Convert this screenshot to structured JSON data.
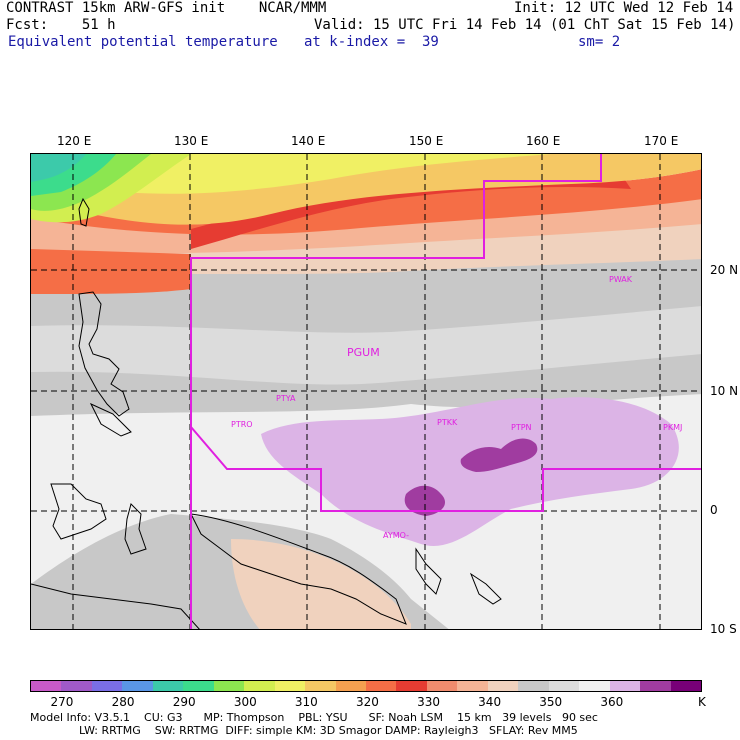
{
  "header": {
    "line1_left": "CONTRAST 15km ARW-GFS init    NCAR/MMM",
    "line1_right": "Init: 12 UTC Wed 12 Feb 14",
    "line2_left": "Fcst:    51 h",
    "line2_right": "Valid: 15 UTC Fri 14 Feb 14 (01 ChT Sat 15 Feb 14)",
    "field_name": "Equivalent potential temperature",
    "level": "at k-index =  39",
    "smooth": "sm= 2"
  },
  "map": {
    "lon_labels": [
      "120 E",
      "130 E",
      "140 E",
      "150 E",
      "160 E",
      "170 E"
    ],
    "lat_labels": [
      "20 N",
      "10 N",
      "0",
      "10 S"
    ],
    "stations": [
      "PGUM",
      "PTYA",
      "PTRO",
      "PTKK",
      "PTPN",
      "PKMJ",
      "PWAK",
      "AYMO-"
    ],
    "colors": {
      "grid": "#000000",
      "domain_box": "#e020e0",
      "coast": "#000000"
    }
  },
  "colorbar": {
    "unit": "K",
    "tick_labels": [
      "270",
      "280",
      "290",
      "300",
      "310",
      "320",
      "330",
      "340",
      "350",
      "360"
    ],
    "colors": [
      "#c85ac8",
      "#a05ac8",
      "#7a6ee6",
      "#5a96e6",
      "#3ccaaa",
      "#3cdc8c",
      "#8ce650",
      "#d2ee50",
      "#f0f064",
      "#f5c864",
      "#f5a050",
      "#f56e46",
      "#e63c32",
      "#f08c6e",
      "#f5b496",
      "#f0d2be",
      "#c8c8c8",
      "#dcdcdc",
      "#f0f0f0",
      "#dcb4e6",
      "#a03ca0",
      "#780078"
    ]
  },
  "footer": {
    "line1": "Model Info: V3.5.1    CU: G3      MP: Thompson    PBL: YSU      SF: Noah LSM    15 km   39 levels   90 sec",
    "line2": "              LW: RRTMG    SW: RRTMG  DIFF: simple KM: 3D Smagor DAMP: Rayleigh3   SFLAY: Rev MM5"
  }
}
